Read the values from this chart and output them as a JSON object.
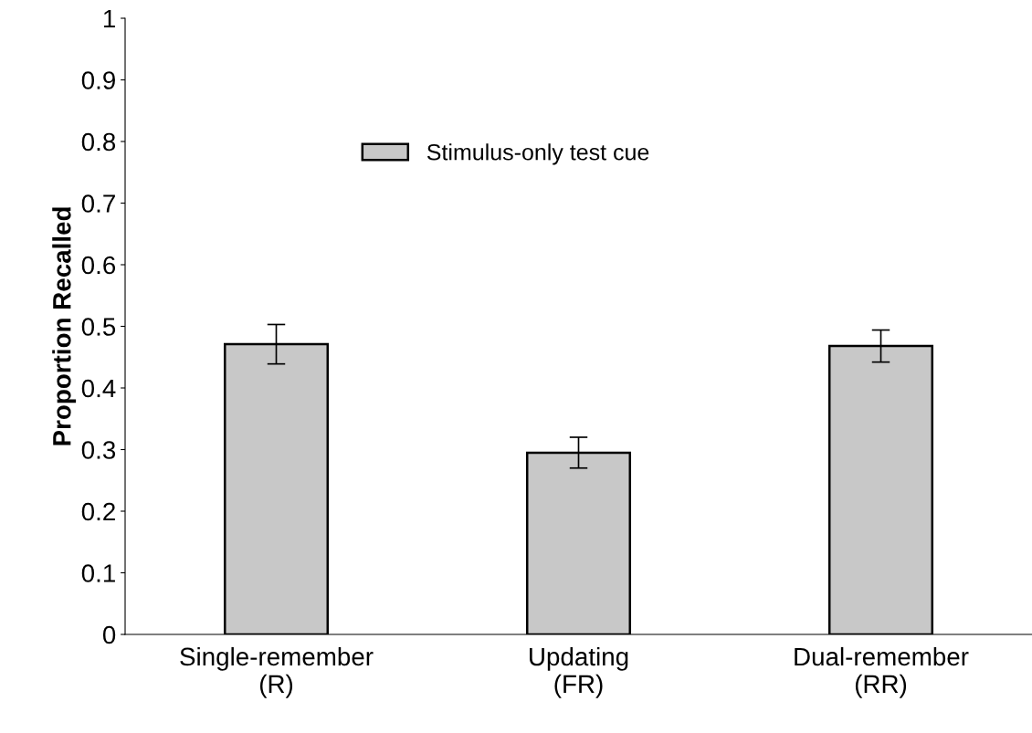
{
  "chart_data": {
    "type": "bar",
    "ylabel": "Proportion Recalled",
    "categories": [
      "Single-remember\n(R)",
      "Updating\n(FR)",
      "Dual-remember\n(RR)"
    ],
    "series": [
      {
        "name": "Stimulus-only test cue",
        "color": "#c8c8c8",
        "values": [
          0.471,
          0.295,
          0.468
        ],
        "errors": [
          0.032,
          0.025,
          0.026
        ]
      }
    ],
    "ylim": [
      0,
      1
    ],
    "yticks": [
      0,
      0.1,
      0.2,
      0.3,
      0.4,
      0.5,
      0.6,
      0.7,
      0.8,
      0.9,
      1
    ],
    "grid": false,
    "legend": "top"
  }
}
